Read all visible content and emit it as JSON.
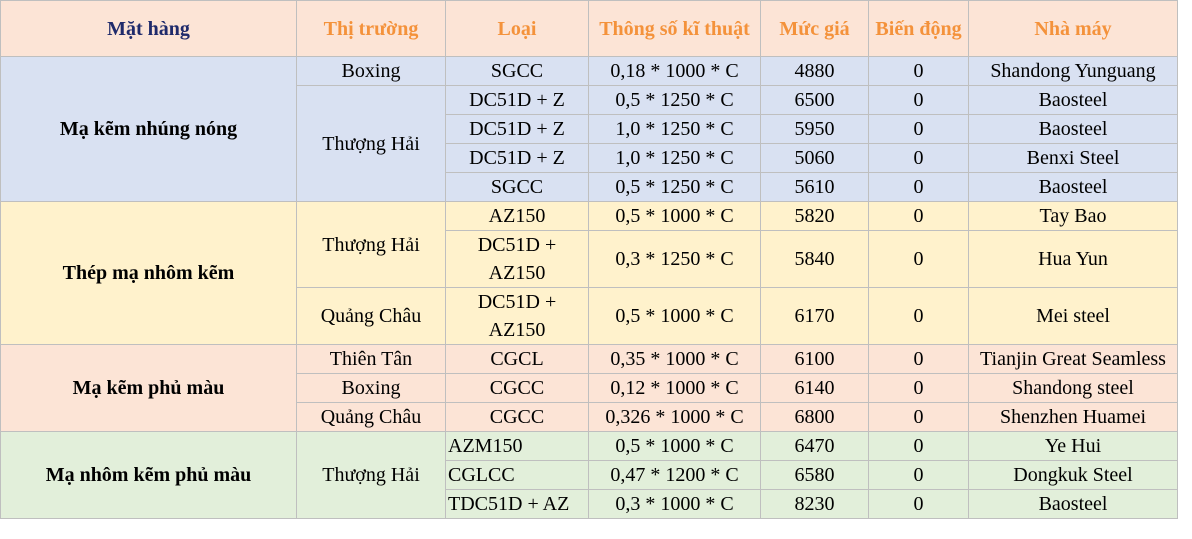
{
  "table": {
    "header": [
      "Mặt hàng",
      "Thị trường",
      "Loại",
      "Thông số kĩ thuật",
      "Mức giá",
      "Biến động",
      "Nhà máy"
    ],
    "groups": [
      {
        "name": "Mạ kẽm nhúng nóng",
        "markets": [
          {
            "name": "Boxing",
            "rows": [
              [
                "SGCC",
                "0,18 * 1000 * C",
                4880,
                0,
                "Shandong Yunguang"
              ]
            ]
          },
          {
            "name": "Thượng Hải",
            "rows": [
              [
                "DC51D + Z",
                "0,5 * 1250 * C",
                6500,
                0,
                "Baosteel"
              ],
              [
                "DC51D + Z",
                "1,0 * 1250 * C",
                5950,
                0,
                "Baosteel"
              ],
              [
                "DC51D + Z",
                "1,0 * 1250 * C",
                5060,
                0,
                "Benxi Steel"
              ],
              [
                "SGCC",
                "0,5 * 1250 * C",
                5610,
                0,
                "Baosteel"
              ]
            ]
          }
        ]
      },
      {
        "name": "Thép mạ nhôm kẽm",
        "markets": [
          {
            "name": "Thượng Hải",
            "rows": [
              [
                "AZ150",
                "0,5 * 1000 * C",
                5820,
                0,
                "Tay Bao"
              ],
              [
                "DC51D + AZ150",
                "0,3 * 1250 * C",
                5840,
                0,
                "Hua Yun"
              ]
            ]
          },
          {
            "name": "Quảng Châu",
            "rows": [
              [
                "DC51D + AZ150",
                "0,5 * 1000 * C",
                6170,
                0,
                "Mei steel"
              ]
            ]
          }
        ]
      },
      {
        "name": "Mạ kẽm phủ màu",
        "markets": [
          {
            "name": "Thiên Tân",
            "rows": [
              [
                "CGCL",
                "0,35 * 1000 * C",
                6100,
                0,
                "Tianjin Great Seamless"
              ]
            ]
          },
          {
            "name": "Boxing",
            "rows": [
              [
                "CGCC",
                "0,12 * 1000 * C",
                6140,
                0,
                "Shandong steel"
              ]
            ]
          },
          {
            "name": "Quảng Châu",
            "rows": [
              [
                "CGCC",
                "0,326 * 1000 * C",
                6800,
                0,
                "Shenzhen Huamei"
              ]
            ]
          }
        ]
      },
      {
        "name": "Mạ nhôm kẽm phủ màu",
        "markets": [
          {
            "name": "Thượng Hải",
            "rows": [
              [
                "AZM150",
                "0,5 * 1000 * C",
                6470,
                0,
                "Ye Hui"
              ],
              [
                "CGLCC",
                "0,47 * 1200 * C",
                6580,
                0,
                "Dongkuk Steel"
              ],
              [
                "TDC51D + AZ",
                "0,3 * 1000 * C",
                8230,
                0,
                "Baosteel"
              ]
            ]
          }
        ]
      }
    ]
  }
}
